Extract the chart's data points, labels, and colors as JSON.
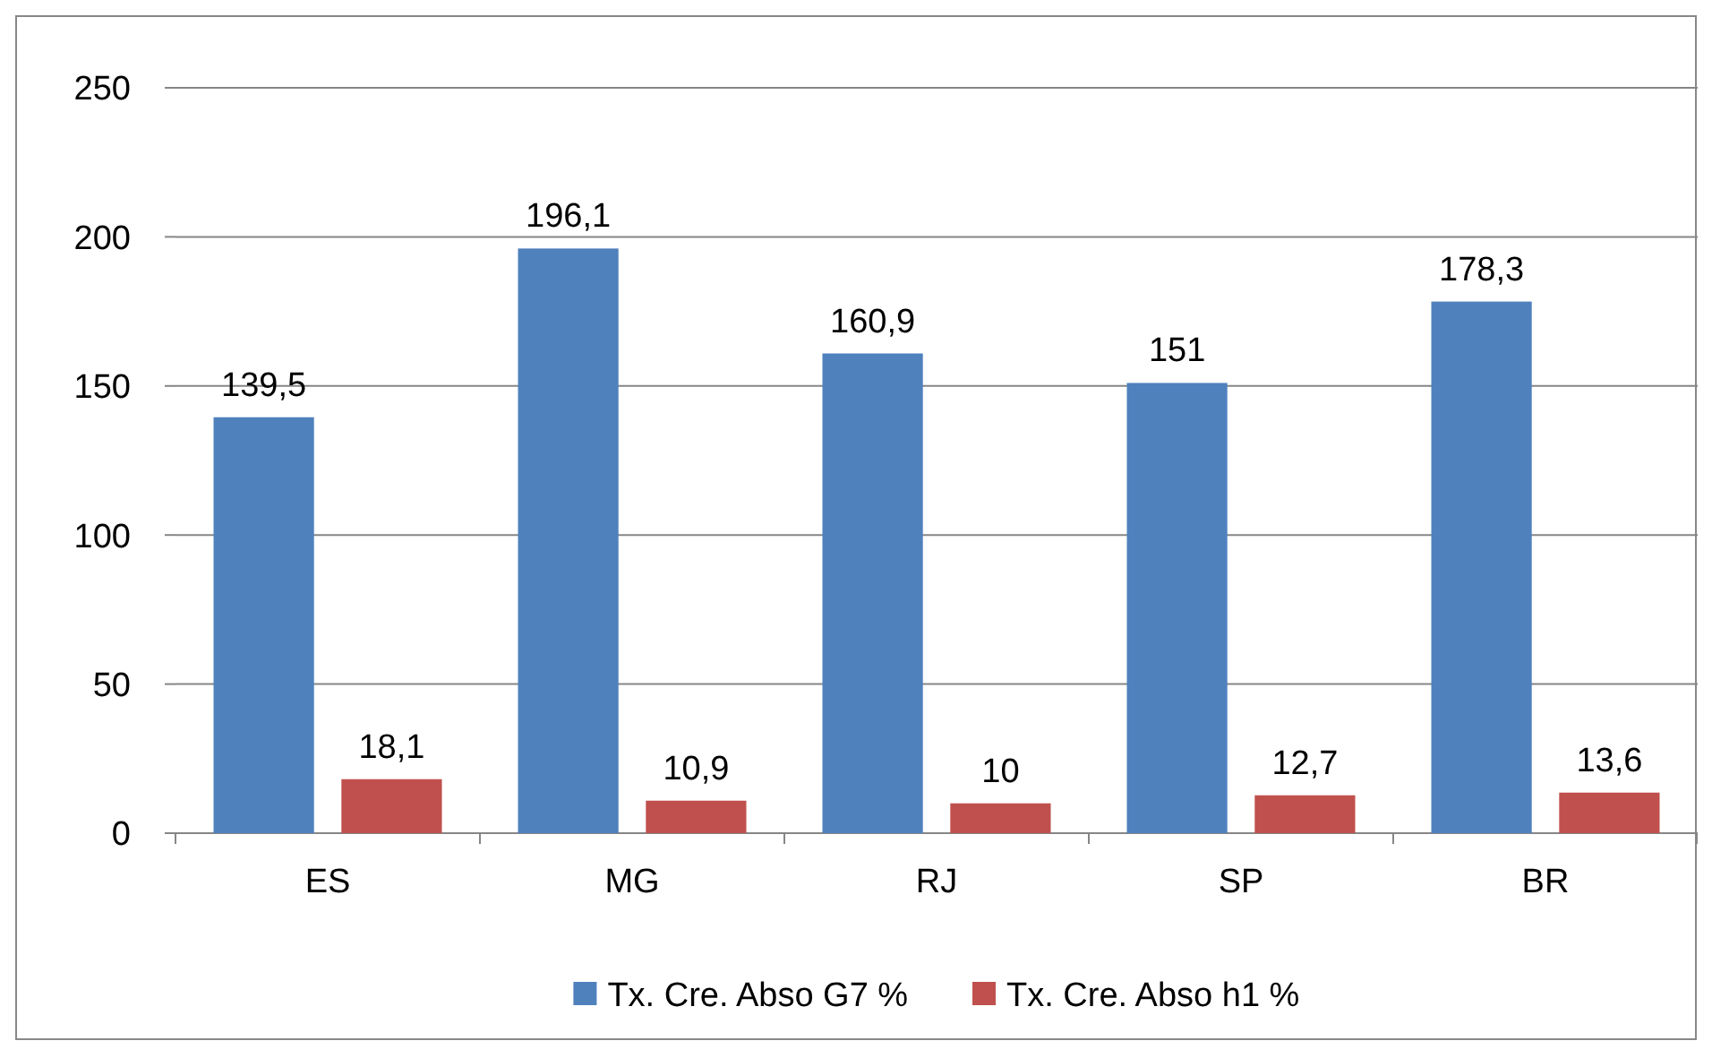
{
  "chart_data": {
    "type": "bar",
    "categories": [
      "ES",
      "MG",
      "RJ",
      "SP",
      "BR"
    ],
    "series": [
      {
        "name": "Tx. Cre. Abso G7 %",
        "color": "#4f81bd",
        "values": [
          139.5,
          196.1,
          160.9,
          151,
          178.3
        ],
        "value_labels": [
          "139,5",
          "196,1",
          "160,9",
          "151",
          "178,3"
        ]
      },
      {
        "name": "Tx. Cre. Abso h1 %",
        "color": "#c0504d",
        "values": [
          18.1,
          10.9,
          10,
          12.7,
          13.6
        ],
        "value_labels": [
          "18,1",
          "10,9",
          "10",
          "12,7",
          "13,6"
        ]
      }
    ],
    "ylim": [
      0,
      250
    ],
    "yticks": [
      0,
      50,
      100,
      150,
      200,
      250
    ],
    "grid": "y",
    "legend": "bottom"
  }
}
